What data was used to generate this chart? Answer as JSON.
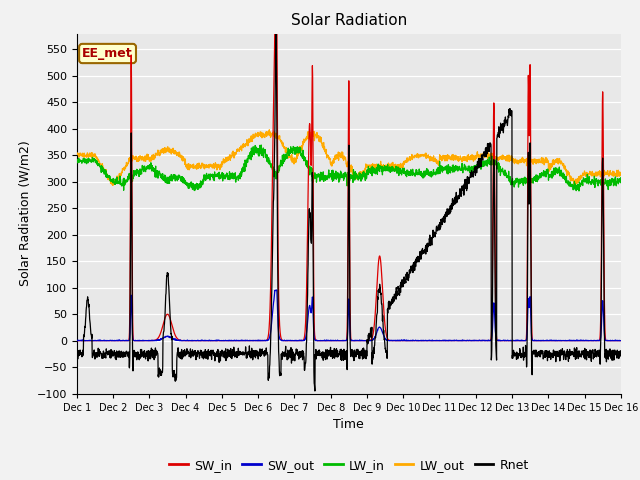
{
  "title": "Solar Radiation",
  "xlabel": "Time",
  "ylabel": "Solar Radiation (W/m2)",
  "ylim": [
    -100,
    580
  ],
  "xlim": [
    0,
    15
  ],
  "xtick_labels": [
    "Dec 1",
    "Dec 2",
    "Dec 3",
    "Dec 4",
    "Dec 5",
    "Dec 6",
    "Dec 7",
    "Dec 8",
    "Dec 9",
    "Dec 10",
    "Dec 11",
    "Dec 12",
    "Dec 13",
    "Dec 14",
    "Dec 15",
    "Dec 16"
  ],
  "ytick_values": [
    -100,
    -50,
    0,
    50,
    100,
    150,
    200,
    250,
    300,
    350,
    400,
    450,
    500,
    550
  ],
  "colors": {
    "SW_in": "#dd0000",
    "SW_out": "#0000cc",
    "LW_in": "#00bb00",
    "LW_out": "#ffaa00",
    "Rnet": "#000000"
  },
  "legend_label": "EE_met",
  "plot_bg_color": "#e8e8e8"
}
